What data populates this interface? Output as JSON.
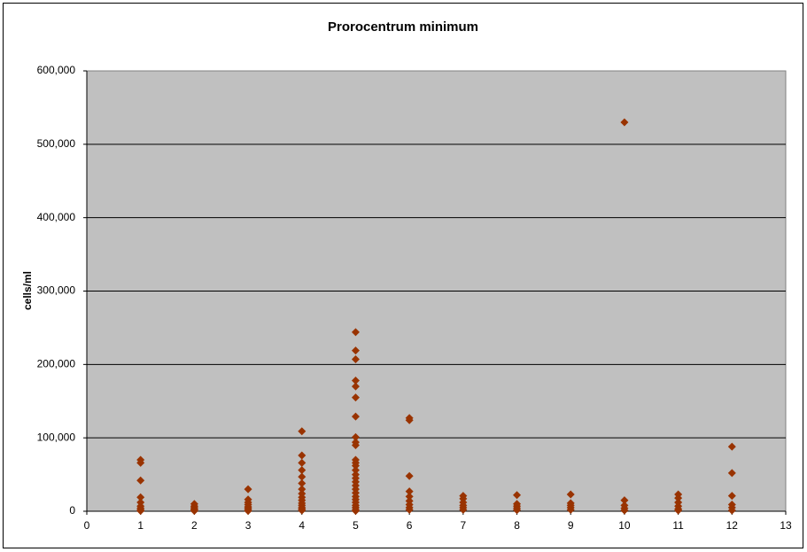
{
  "chart_data": {
    "type": "scatter",
    "title": "Prorocentrum minimum",
    "y_label": "cells/ml",
    "color": "#993300",
    "x": [
      1,
      1,
      1,
      1,
      1,
      1,
      1,
      1,
      1,
      2,
      2,
      2,
      2,
      2,
      2,
      3,
      3,
      3,
      3,
      3,
      3,
      3,
      3,
      4,
      4,
      4,
      4,
      4,
      4,
      4,
      4,
      4,
      4,
      4,
      4,
      4,
      4,
      4,
      5,
      5,
      5,
      5,
      5,
      5,
      5,
      5,
      5,
      5,
      5,
      5,
      5,
      5,
      5,
      5,
      5,
      5,
      5,
      5,
      5,
      5,
      5,
      5,
      5,
      5,
      5,
      6,
      6,
      6,
      6,
      6,
      6,
      6,
      6,
      6,
      7,
      7,
      7,
      7,
      7,
      7,
      8,
      8,
      8,
      8,
      8,
      9,
      9,
      9,
      9,
      9,
      10,
      10,
      10,
      10,
      10,
      11,
      11,
      11,
      11,
      11,
      11,
      12,
      12,
      12,
      12,
      12,
      12
    ],
    "values": [
      70000,
      66000,
      42000,
      19000,
      12000,
      7000,
      4000,
      2000,
      500,
      10000,
      7000,
      5000,
      3000,
      1500,
      500,
      30000,
      16000,
      12000,
      9000,
      6000,
      4000,
      2000,
      500,
      109000,
      76000,
      66000,
      56000,
      47000,
      38000,
      30000,
      24000,
      19000,
      15000,
      11000,
      8000,
      5000,
      3000,
      1000,
      244000,
      219000,
      207000,
      178000,
      170000,
      155000,
      129000,
      101000,
      94000,
      90000,
      70000,
      66000,
      62000,
      56000,
      50000,
      45000,
      40000,
      35000,
      30000,
      25000,
      20000,
      16000,
      12000,
      8000,
      5000,
      2000,
      500,
      127000,
      124000,
      48000,
      27000,
      20000,
      14000,
      9000,
      5000,
      2000,
      21000,
      17000,
      12000,
      8000,
      5000,
      2000,
      22000,
      10000,
      7000,
      4000,
      1500,
      23000,
      11000,
      8000,
      5000,
      2000,
      530000,
      15000,
      8000,
      4000,
      1000,
      23000,
      18000,
      12000,
      7000,
      3000,
      1000,
      88000,
      52000,
      21000,
      9000,
      5000,
      1000
    ],
    "xlim": [
      0,
      13
    ],
    "xticks": [
      0,
      1,
      2,
      3,
      4,
      5,
      6,
      7,
      8,
      9,
      10,
      11,
      12,
      13
    ],
    "ylim": [
      0,
      600000
    ],
    "yticks": [
      0,
      {
        "value": 100000,
        "label": "100,000"
      },
      {
        "value": 200000,
        "label": "200,000"
      },
      {
        "value": 300000,
        "label": "300,000"
      },
      {
        "value": 400000,
        "label": "400,000"
      },
      {
        "value": 500000,
        "label": "500,000"
      },
      {
        "value": 600000,
        "label": "600,000"
      }
    ],
    "grid": true
  }
}
